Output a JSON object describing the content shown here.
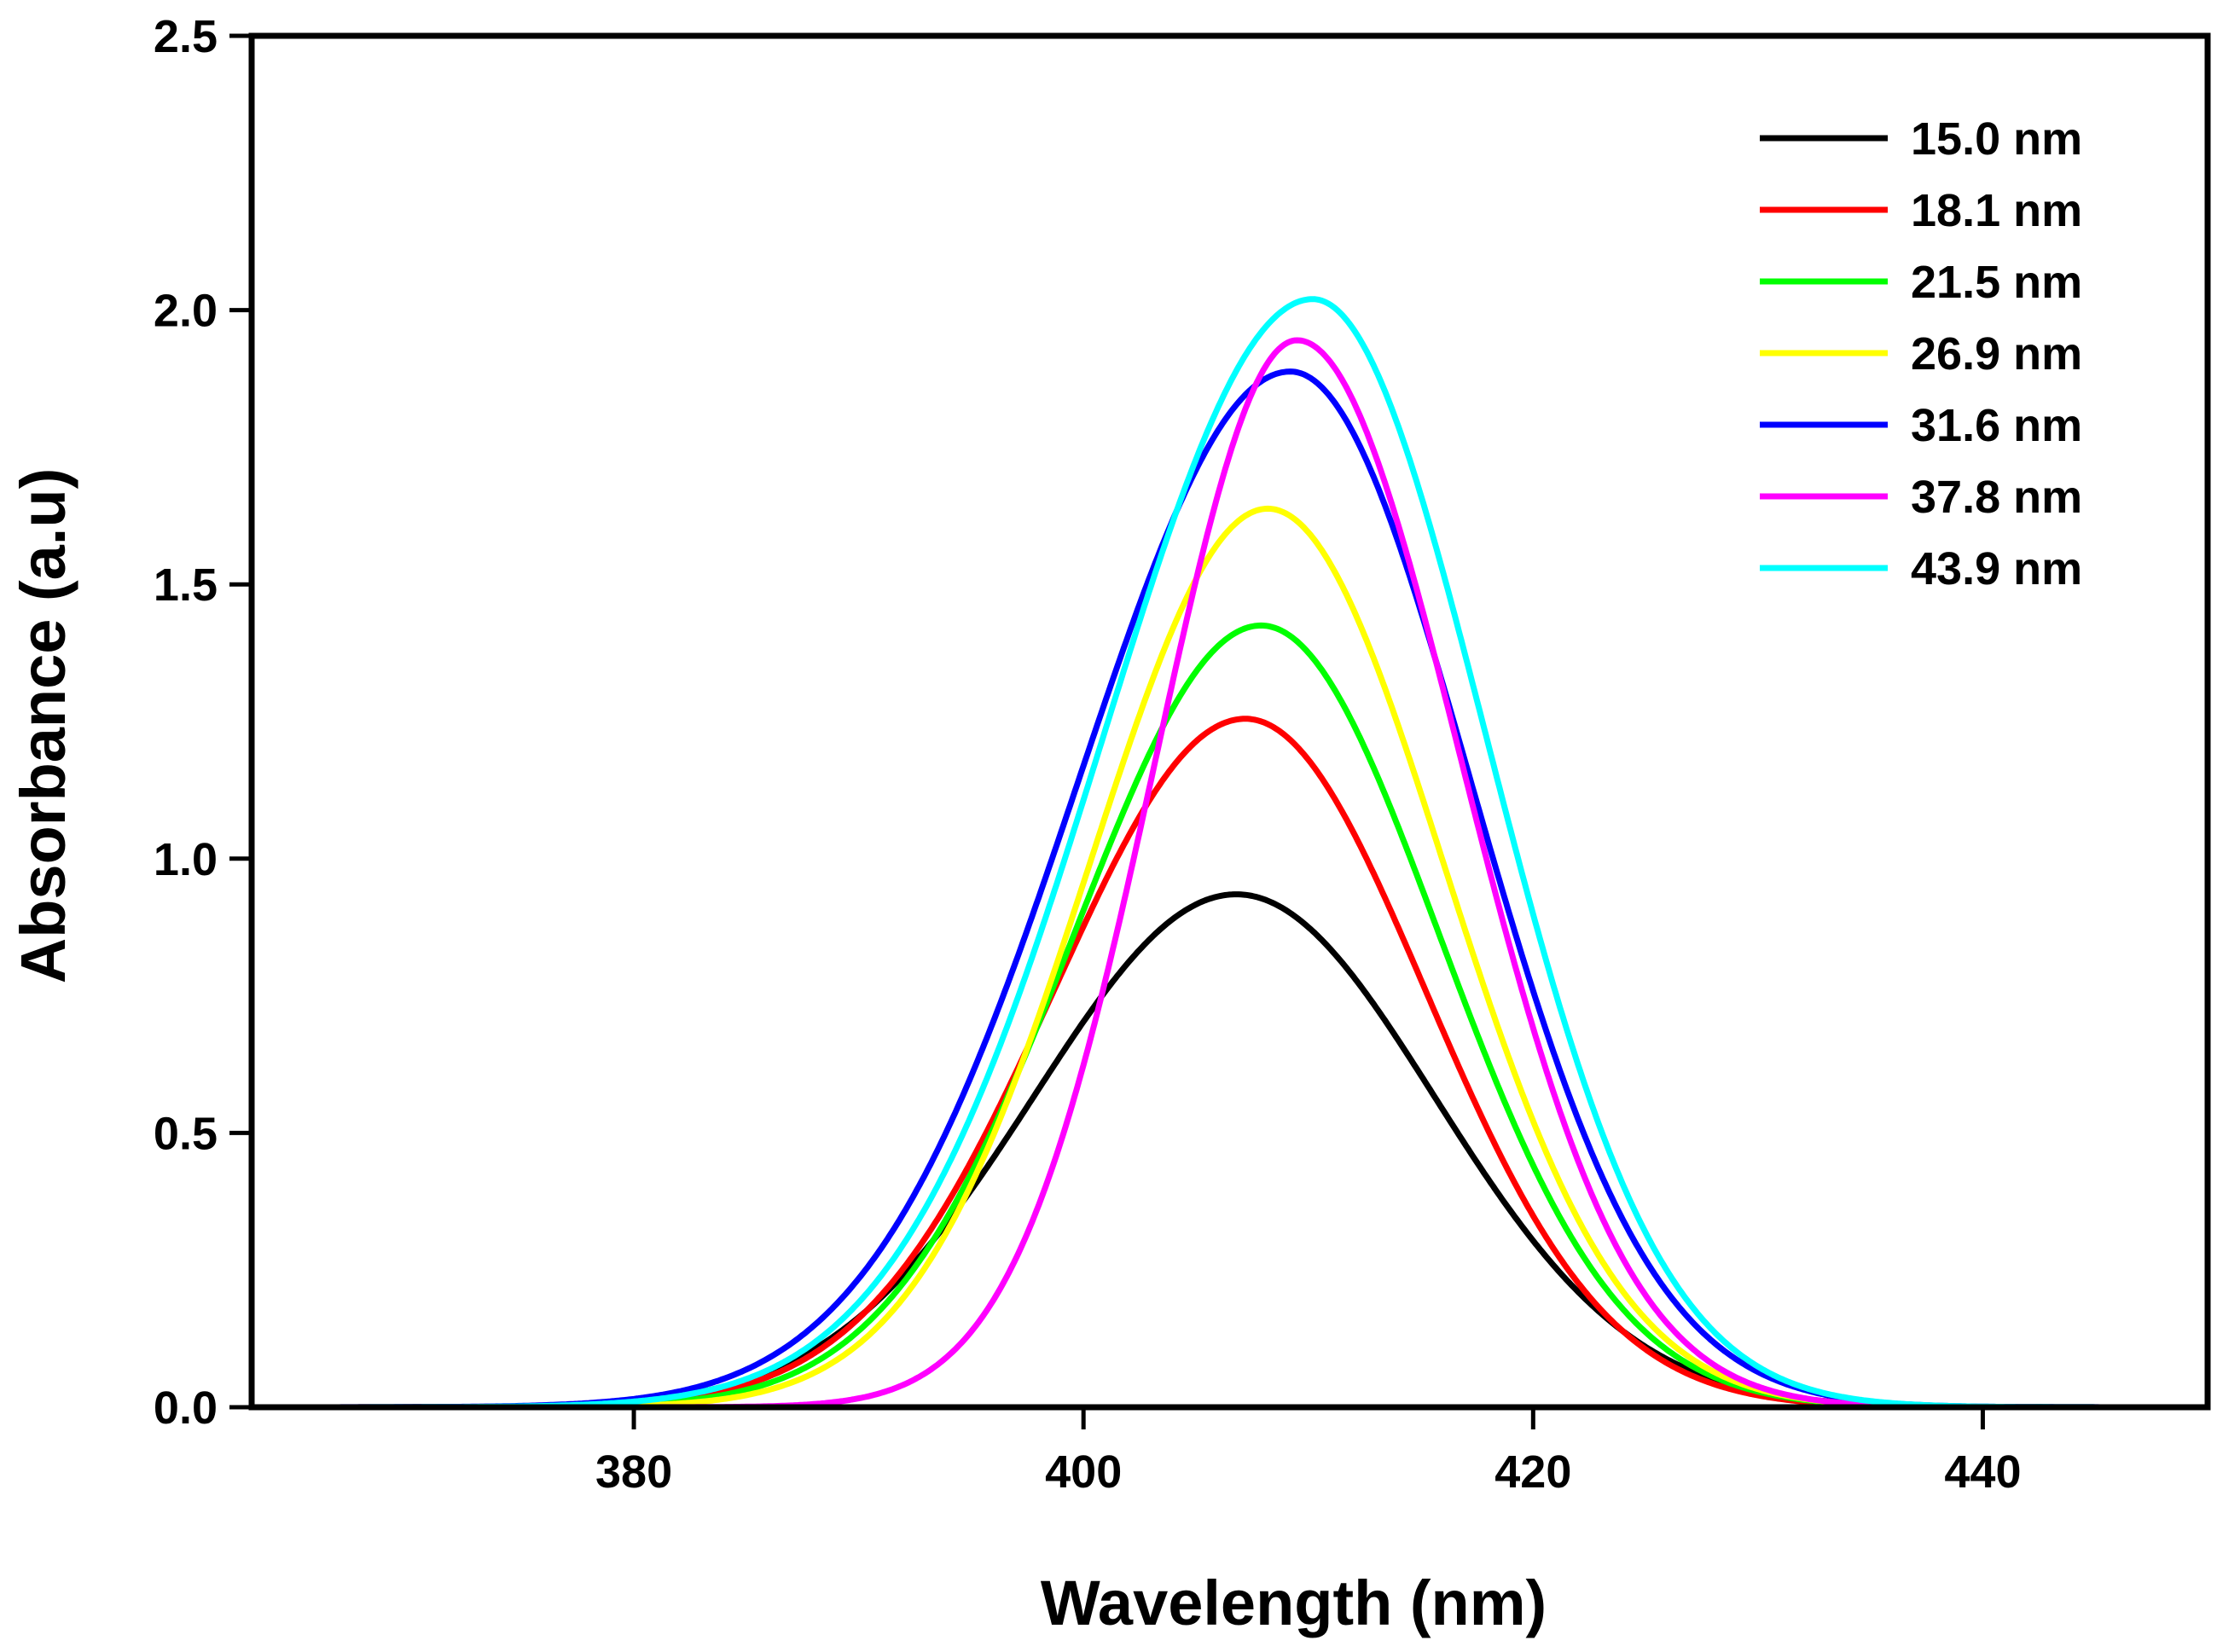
{
  "chart_data": {
    "type": "line",
    "title": "",
    "xlabel": "Wavelength (nm)",
    "ylabel": "Absorbance (a.u)",
    "xlim": [
      363,
      450
    ],
    "ylim": [
      0,
      2.5
    ],
    "xticks": [
      380,
      400,
      420,
      440
    ],
    "xtick_labels": [
      "380",
      "400",
      "420",
      "440"
    ],
    "yticks": [
      0.0,
      0.5,
      1.0,
      1.5,
      2.0,
      2.5
    ],
    "ytick_labels": [
      "0.0",
      "0.5",
      "1.0",
      "1.5",
      "2.0",
      "2.5"
    ],
    "grid": false,
    "legend_position": "top-right",
    "series": [
      {
        "name": "15.0 nm",
        "color": "#000000",
        "peak_x": 406.8,
        "peak_y": 0.935,
        "sigma_left": 9.0,
        "sigma_right": 8.8
      },
      {
        "name": "18.1 nm",
        "color": "#ff0000",
        "peak_x": 407.2,
        "peak_y": 1.255,
        "sigma_left": 8.5,
        "sigma_right": 8.0
      },
      {
        "name": "21.5 nm",
        "color": "#00ff00",
        "peak_x": 407.9,
        "peak_y": 1.425,
        "sigma_left": 8.3,
        "sigma_right": 7.9
      },
      {
        "name": "26.9 nm",
        "color": "#ffff00",
        "peak_x": 408.2,
        "peak_y": 1.638,
        "sigma_left": 7.9,
        "sigma_right": 7.8
      },
      {
        "name": "31.6 nm",
        "color": "#0000ff",
        "peak_x": 409.2,
        "peak_y": 1.888,
        "sigma_left": 9.4,
        "sigma_right": 8.0
      },
      {
        "name": "37.8 nm",
        "color": "#ff00ff",
        "peak_x": 409.5,
        "peak_y": 1.945,
        "sigma_left": 6.3,
        "sigma_right": 7.3
      },
      {
        "name": "43.9 nm",
        "color": "#00ffff",
        "peak_x": 410.2,
        "peak_y": 2.02,
        "sigma_left": 9.3,
        "sigma_right": 7.7
      }
    ]
  }
}
